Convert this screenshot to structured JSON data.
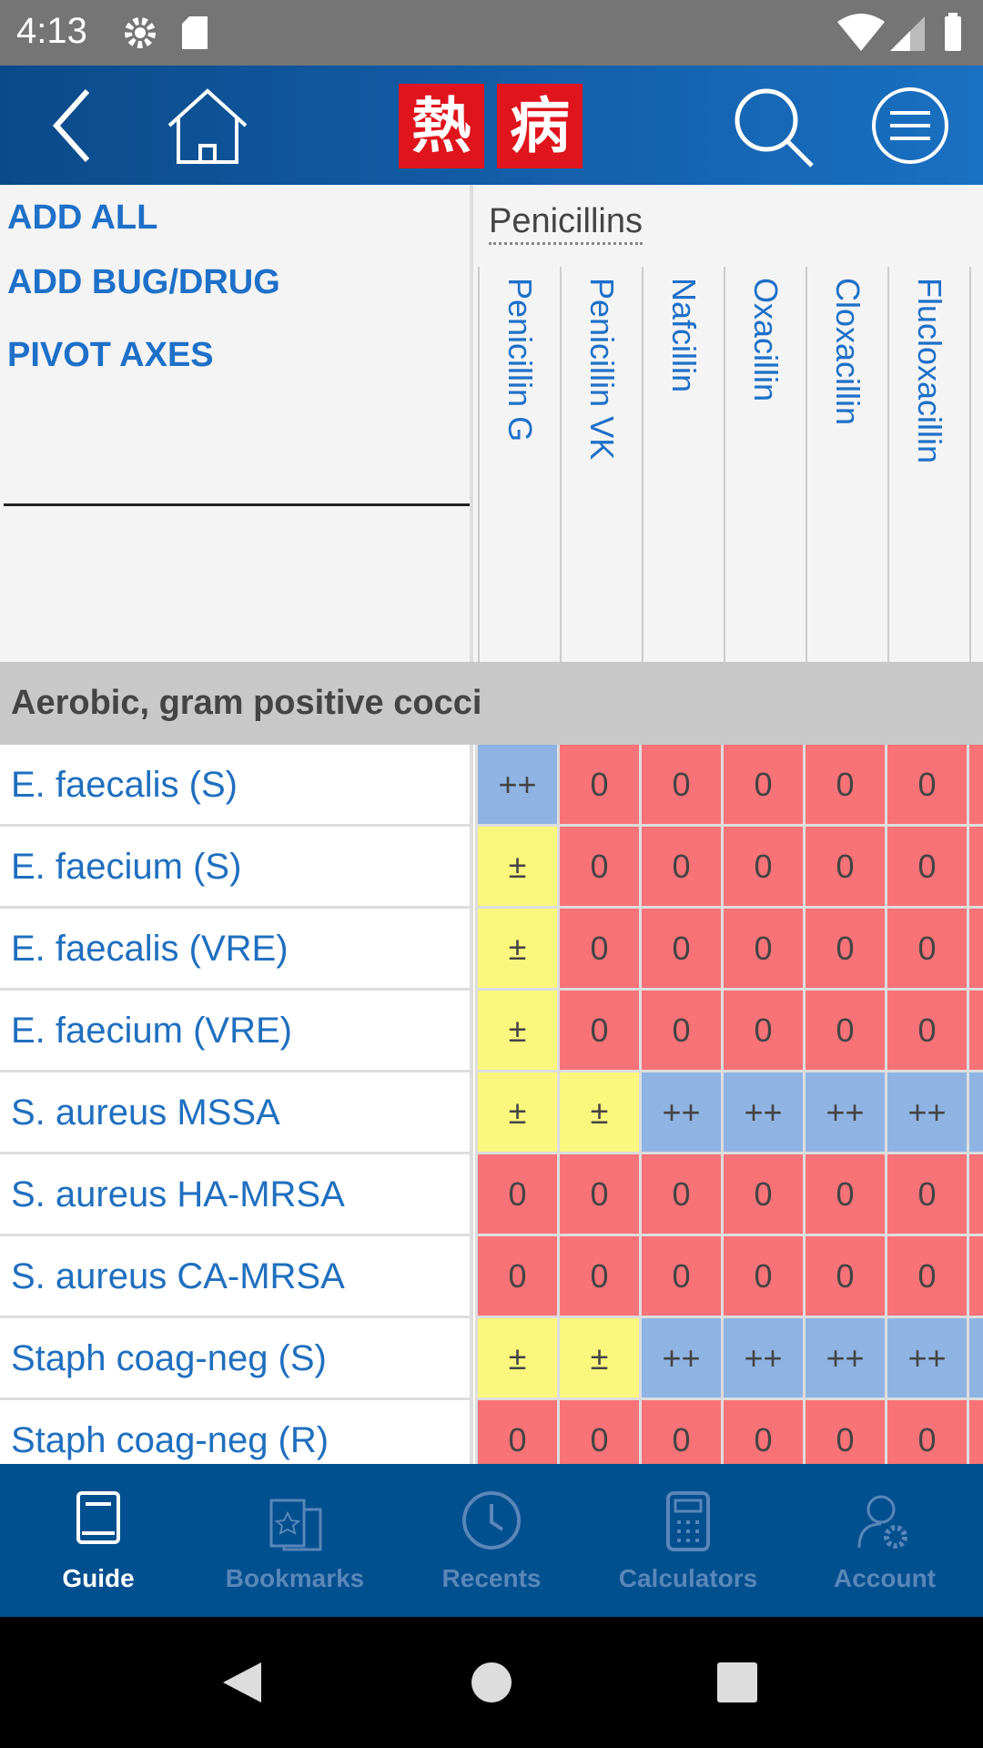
{
  "status_bar": {
    "time": "4:13"
  },
  "header": {
    "logo": [
      "熱",
      "病"
    ]
  },
  "menu": [
    "ADD ALL",
    "ADD BUG/DRUG",
    "PIVOT AXES"
  ],
  "group": "Penicillins",
  "drugs": [
    "Penicillin G",
    "Penicillin VK",
    "Nafcillin",
    "Oxacillin",
    "Cloxacillin",
    "Flucloxacillin"
  ],
  "section": "Aerobic, gram positive cocci",
  "cell_colors": {
    "++": "#8fb4e3",
    "±": "#fbf77e",
    "0": "#f87378"
  },
  "rows": [
    {
      "name": "E. faecalis (S)",
      "values": [
        "++",
        "0",
        "0",
        "0",
        "0",
        "0"
      ]
    },
    {
      "name": "E. faecium (S)",
      "values": [
        "±",
        "0",
        "0",
        "0",
        "0",
        "0"
      ]
    },
    {
      "name": "E. faecalis (VRE)",
      "values": [
        "±",
        "0",
        "0",
        "0",
        "0",
        "0"
      ]
    },
    {
      "name": "E. faecium (VRE)",
      "values": [
        "±",
        "0",
        "0",
        "0",
        "0",
        "0"
      ]
    },
    {
      "name": "S. aureus MSSA",
      "values": [
        "±",
        "±",
        "++",
        "++",
        "++",
        "++"
      ]
    },
    {
      "name": "S. aureus HA-MRSA",
      "values": [
        "0",
        "0",
        "0",
        "0",
        "0",
        "0"
      ]
    },
    {
      "name": "S. aureus CA-MRSA",
      "values": [
        "0",
        "0",
        "0",
        "0",
        "0",
        "0"
      ]
    },
    {
      "name": "Staph coag-neg (S)",
      "values": [
        "±",
        "±",
        "++",
        "++",
        "++",
        "++"
      ]
    },
    {
      "name": "Staph coag-neg (R)",
      "values": [
        "0",
        "0",
        "0",
        "0",
        "0",
        "0"
      ]
    }
  ],
  "nav": [
    {
      "label": "Guide",
      "active": true
    },
    {
      "label": "Bookmarks",
      "active": false
    },
    {
      "label": "Recents",
      "active": false
    },
    {
      "label": "Calculators",
      "active": false
    },
    {
      "label": "Account",
      "active": false
    }
  ]
}
